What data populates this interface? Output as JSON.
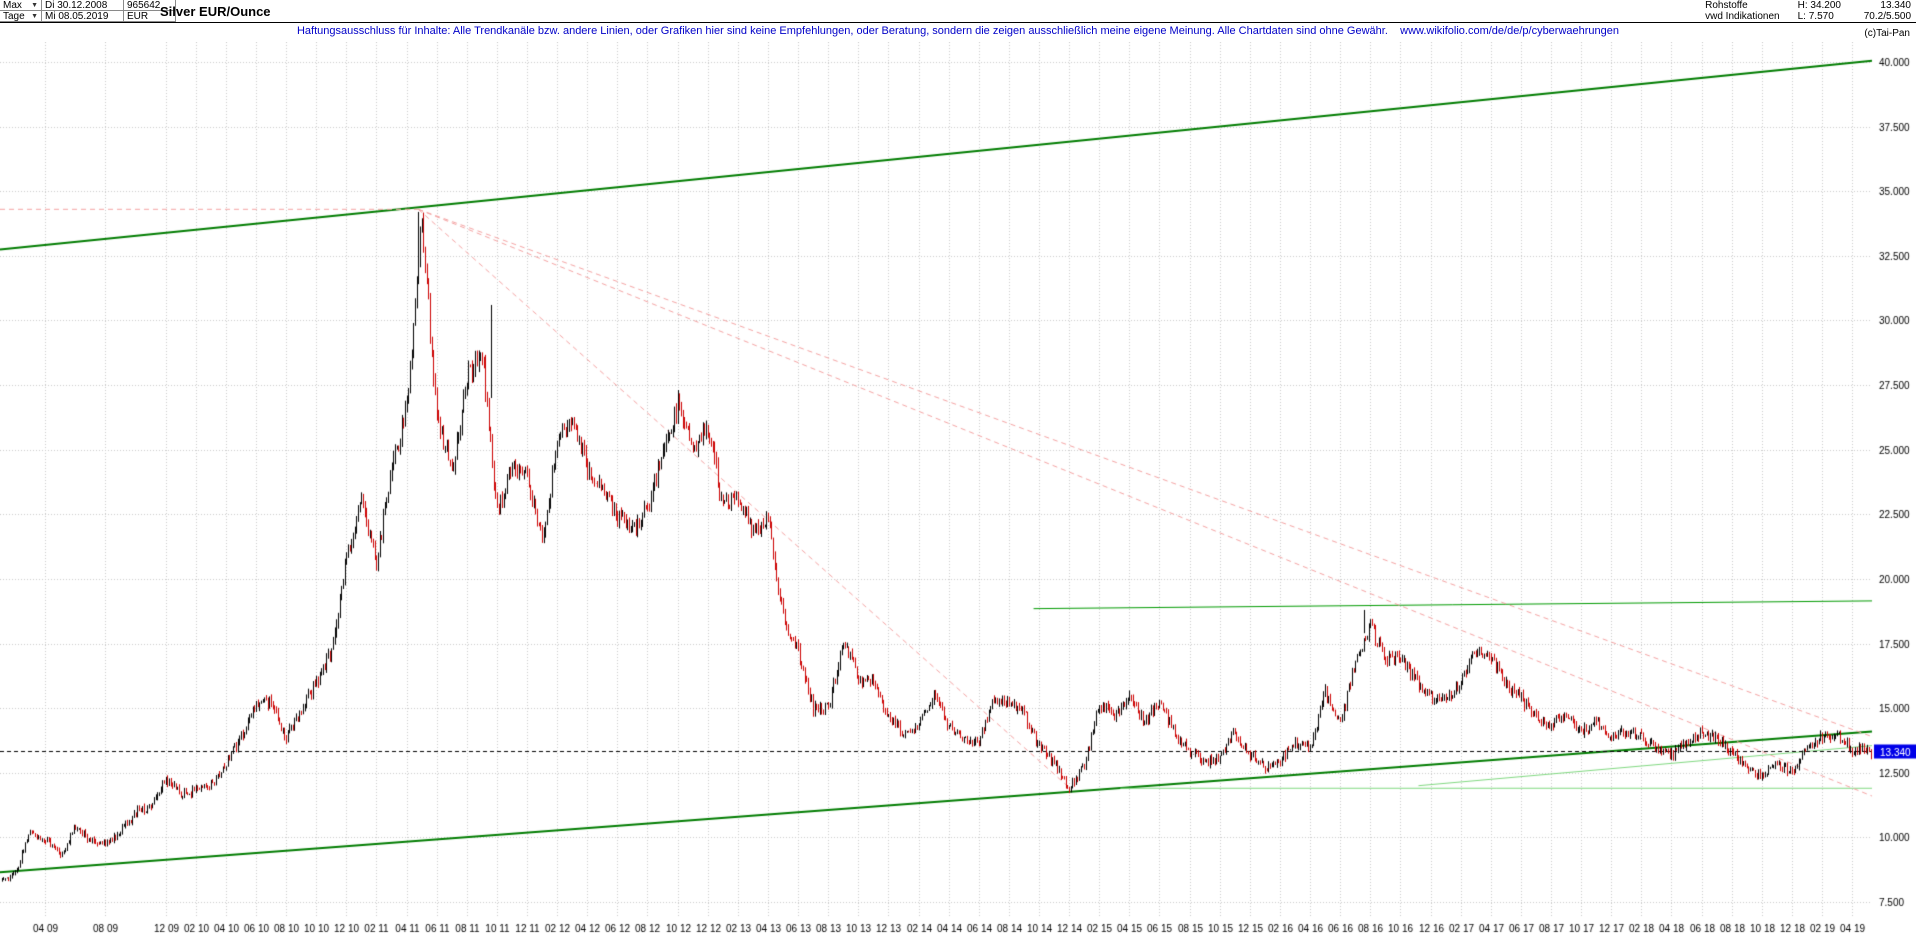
{
  "toolbar": {
    "range_selector": "Max",
    "period_selector": "Tage",
    "start_date": "Di 30.12.2008",
    "end_date": "Mi 08.05.2019",
    "security_id": "965642",
    "currency": "EUR",
    "title": "Silver EUR/Ounce",
    "category": "Rohstoffe",
    "feed": "vwd Indikationen",
    "high": "H: 34.200",
    "low": "L: 7.570",
    "last": "13.340",
    "ratio": "70.2/5.500",
    "copyright": "(c)Tai-Pan"
  },
  "disclaimer": {
    "text": "Haftungsausschluss für Inhalte: Alle Trendkanäle bzw. andere Linien, oder Grafiken hier sind keine Empfehlungen, oder Beratung, sondern die zeigen ausschließlich meine eigene Meinung. Alle Chartdaten sind ohne Gewähr.",
    "url": "www.wikifolio.com/de/de/p/cyberwaehrungen"
  },
  "chart_data": {
    "type": "candlestick",
    "title": "Silver EUR/Ounce",
    "xlabel": "",
    "ylabel": "",
    "grid": true,
    "x_range": [
      2009.0,
      2019.36
    ],
    "ylim": [
      6.2,
      40.6
    ],
    "high": 34.2,
    "low": 7.57,
    "last_price": 13.34,
    "last_price_label": "13.340",
    "y_axis": {
      "labels": [
        "40.000",
        "37.500",
        "35.000",
        "32.500",
        "30.000",
        "27.500",
        "25.000",
        "22.500",
        "20.000",
        "17.500",
        "15.000",
        "12.500",
        "10.000",
        "7.500"
      ],
      "values": [
        40,
        37.5,
        35,
        32.5,
        30,
        27.5,
        25,
        22.5,
        20,
        17.5,
        15,
        12.5,
        10,
        7.5
      ]
    },
    "x_axis": {
      "labels": [
        "04 09",
        "08 09",
        "12 09",
        "02 10",
        "04 10",
        "06 10",
        "08 10",
        "10 10",
        "12 10",
        "02 11",
        "04 11",
        "06 11",
        "08 11",
        "10 11",
        "12 11",
        "02 12",
        "04 12",
        "06 12",
        "08 12",
        "10 12",
        "12 12",
        "02 13",
        "04 13",
        "06 13",
        "08 13",
        "10 13",
        "12 13",
        "02 14",
        "04 14",
        "06 14",
        "08 14",
        "10 14",
        "12 14",
        "02 15",
        "04 15",
        "06 15",
        "08 15",
        "10 15",
        "12 15",
        "02 16",
        "04 16",
        "06 16",
        "08 16",
        "10 16",
        "12 16",
        "02 17",
        "04 17",
        "06 17",
        "08 17",
        "10 17",
        "12 17",
        "02 18",
        "04 18",
        "06 18",
        "08 18",
        "10 18",
        "12 18",
        "02 19",
        "04 19"
      ]
    },
    "monthly_closes": {
      "start": "2008-12",
      "values": [
        8.3,
        8.6,
        10.2,
        9.9,
        9.3,
        10.4,
        9.9,
        9.7,
        10.2,
        11.0,
        11.2,
        12.2,
        11.7,
        11.8,
        12.0,
        12.9,
        13.9,
        15.1,
        15.2,
        13.8,
        15.0,
        16.0,
        17.2,
        20.8,
        23.0,
        20.6,
        24.3,
        26.6,
        33.8,
        26.3,
        24.2,
        27.8,
        28.8,
        22.5,
        24.5,
        24.0,
        21.5,
        25.3,
        26.2,
        24.3,
        23.6,
        22.4,
        21.9,
        22.8,
        24.9,
        26.8,
        24.8,
        25.9,
        22.9,
        23.2,
        21.8,
        22.4,
        18.5,
        17.2,
        15.0,
        15.0,
        17.7,
        16.0,
        16.0,
        14.6,
        14.1,
        14.3,
        15.5,
        14.3,
        13.8,
        13.7,
        15.4,
        15.2,
        14.8,
        13.5,
        12.9,
        11.9,
        12.8,
        15.2,
        14.7,
        15.5,
        14.4,
        15.3,
        14.0,
        13.3,
        12.9,
        13.0,
        14.1,
        13.2,
        12.7,
        13.0,
        13.6,
        13.5,
        15.6,
        14.4,
        16.8,
        18.2,
        16.8,
        17.0,
        16.1,
        15.5,
        15.2,
        16.0,
        17.2,
        17.0,
        15.9,
        15.4,
        14.6,
        14.3,
        14.8,
        14.1,
        14.4,
        13.9,
        14.1,
        13.9,
        13.4,
        13.2,
        13.6,
        14.1,
        13.8,
        13.3,
        12.6,
        12.4,
        12.8,
        12.5,
        13.5,
        13.9,
        14.0,
        13.4,
        13.3,
        13.34
      ]
    },
    "spikes": [
      {
        "t": 2011.315,
        "from": 31.5,
        "to": 34.2
      },
      {
        "t": 2011.72,
        "from": 27.0,
        "to": 30.6
      },
      {
        "t": 2016.55,
        "from": 17.9,
        "to": 18.8
      }
    ],
    "trendlines": [
      {
        "name": "upper-green-channel",
        "color": "#007c00",
        "width": 2,
        "dash": [],
        "points": [
          [
            2009.0,
            32.75
          ],
          [
            2019.36,
            40.05
          ]
        ]
      },
      {
        "name": "lower-green-channel",
        "color": "#007c00",
        "width": 2,
        "dash": [],
        "points": [
          [
            2009.0,
            8.65
          ],
          [
            2019.36,
            14.1
          ]
        ]
      },
      {
        "name": "green-resistance-2016",
        "color": "#009a00",
        "width": 1,
        "dash": [],
        "points": [
          [
            2014.72,
            18.85
          ],
          [
            2019.36,
            19.15
          ]
        ]
      },
      {
        "name": "light-green-flat-support",
        "color": "#7fd87f",
        "width": 1,
        "dash": [],
        "points": [
          [
            2015.2,
            11.9
          ],
          [
            2019.36,
            11.9
          ]
        ]
      },
      {
        "name": "light-green-rising-support",
        "color": "#7fd87f",
        "width": 1,
        "dash": [],
        "points": [
          [
            2016.85,
            12.0
          ],
          [
            2019.36,
            13.55
          ]
        ]
      },
      {
        "name": "pink-high-horizontal",
        "color": "#f4a2a2",
        "width": 1,
        "dash": [
          5,
          4
        ],
        "points": [
          [
            2009.0,
            34.3
          ],
          [
            2011.315,
            34.3
          ]
        ]
      },
      {
        "name": "pink-downtrend-steep",
        "color": "#f4a2a2",
        "width": 1,
        "dash": [
          5,
          4
        ],
        "points": [
          [
            2011.315,
            34.3
          ],
          [
            2014.93,
            11.85
          ]
        ]
      },
      {
        "name": "pink-downtrend-mid",
        "color": "#f4a2a2",
        "width": 1,
        "dash": [
          5,
          4
        ],
        "points": [
          [
            2011.315,
            34.3
          ],
          [
            2019.36,
            11.6
          ]
        ]
      },
      {
        "name": "pink-downtrend-shallow",
        "color": "#f4a2a2",
        "width": 1,
        "dash": [
          5,
          4
        ],
        "points": [
          [
            2011.315,
            34.3
          ],
          [
            2019.36,
            13.9
          ]
        ]
      }
    ],
    "colors": {
      "candle_up": "#000000",
      "candle_down": "#cc0000",
      "grid": "#c9c9c9",
      "current_price_line": "#000000",
      "price_tag_bg": "#0000e8",
      "price_tag_text": "#ffffff",
      "disclaimer_blue": "#0000c8"
    }
  }
}
